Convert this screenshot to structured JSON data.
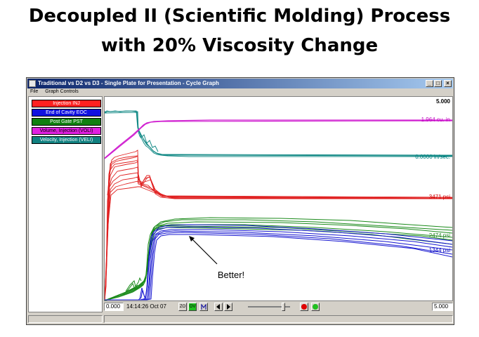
{
  "slide": {
    "title_line1": "Decoupled II (Scientific Molding) Process",
    "title_line2": "with 20% Viscosity Change"
  },
  "window": {
    "title": "Traditional vs D2 vs D3 - Single Plate for Presentation - Cycle Graph",
    "menu": [
      "File",
      "Graph Controls"
    ],
    "buttons": {
      "minimize": "_",
      "maximize": "□",
      "close": "×"
    }
  },
  "legend": [
    {
      "label": "Injection INJ",
      "bg": "#ff2020",
      "fg": "#ffffff"
    },
    {
      "label": "End of Cavity EOC",
      "bg": "#1010e0",
      "fg": "#ffffff"
    },
    {
      "label": "Post Gate PST",
      "bg": "#108010",
      "fg": "#ffffff"
    },
    {
      "label": "Volume, Injection (VOLI)",
      "bg": "#e020e0",
      "fg": "#000000"
    },
    {
      "label": "Velocity, Injection (VELI)",
      "bg": "#108080",
      "fg": "#ffffff"
    }
  ],
  "plot": {
    "y_top_label": "5.000",
    "readouts": [
      {
        "text": "1.964 cu. in",
        "color": "#c000c0"
      },
      {
        "text": "0.0000 in/sec.",
        "color": "#008080"
      },
      {
        "text": "3471 psi",
        "color": "#d00000"
      },
      {
        "text": "2474 psi",
        "color": "#208020"
      },
      {
        "text": "1344 psi",
        "color": "#0000c0"
      }
    ],
    "annotation": "Better!"
  },
  "controls": {
    "x_start": "0.000",
    "timestamp": "14:14:26 Oct 07",
    "zo_label": "ZO",
    "ov_label": "OV",
    "x_end": "5.000",
    "record_color": "#e00000",
    "play_color": "#20c020"
  }
}
